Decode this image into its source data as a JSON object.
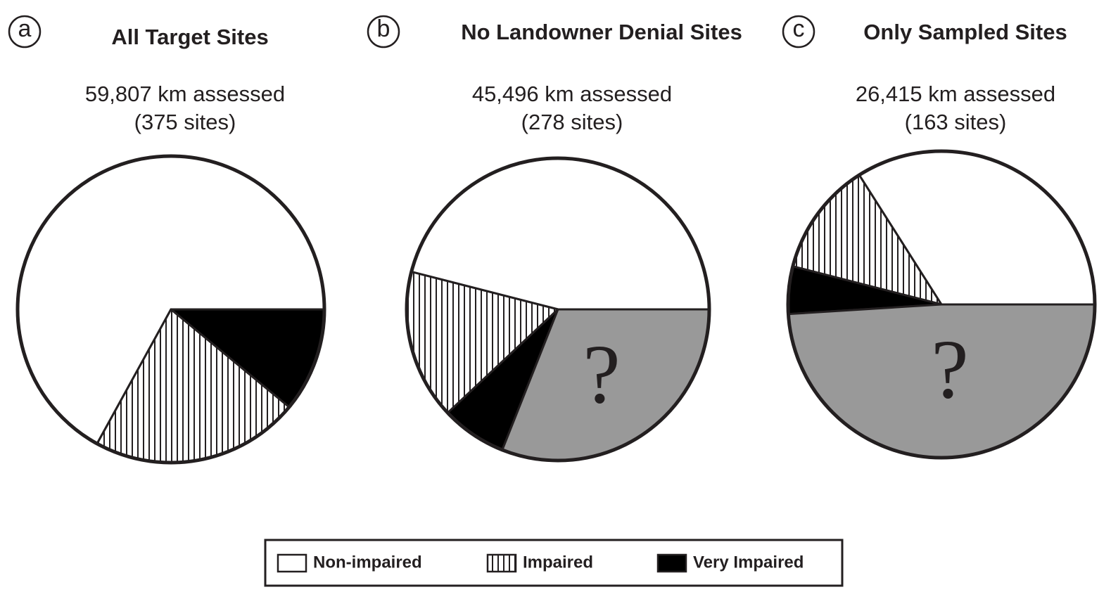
{
  "chart_data": {
    "type": "pie",
    "categories": [
      "Non-impaired",
      "Impaired",
      "Very Impaired"
    ],
    "colors": [
      "#ffffff",
      "hatch",
      "#000000"
    ],
    "unknown_label": "?",
    "unknown_color": "#999999",
    "pies": [
      {
        "panel": "a",
        "title": "All Target Sites",
        "subtitle": "59,807 km assessed",
        "sites": "(375 sites)",
        "values": [
          67,
          22,
          11
        ],
        "unknown": null
      },
      {
        "panel": "b",
        "title": "No Landowner Denial Sites",
        "subtitle": "45,496 km assessed",
        "sites": "(278 sites)",
        "values": [
          46,
          16,
          7
        ],
        "unknown": 31
      },
      {
        "panel": "c",
        "title": "Only Sampled Sites",
        "subtitle": "26,415 km assessed",
        "sites": "(163 sites)",
        "values": [
          34,
          12,
          5
        ],
        "unknown": 49
      }
    ]
  }
}
